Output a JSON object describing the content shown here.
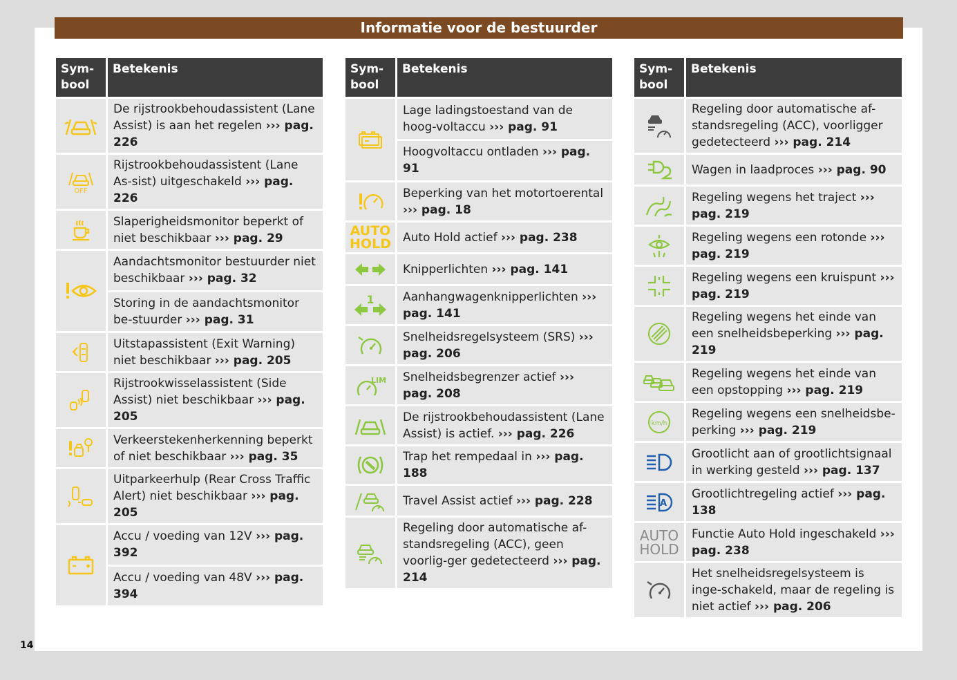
{
  "header": {
    "title": "Informatie voor de bestuurder"
  },
  "page_number": "14",
  "colors": {
    "banner": "#7b4a23",
    "table_header": "#3c3c3c",
    "row_bg": "#e6e6e6",
    "yellow": "#f5c518",
    "green": "#8dc63f",
    "blue": "#1f5fae",
    "grey": "#8a8a8a"
  },
  "columns": {
    "symbol": "Sym-\nbool",
    "meaning": "Betekenis"
  },
  "col1": [
    {
      "pre": "De rijstrookbehoudassistent (Lane Assist) is aan het regelen ",
      "ref": "››› pag. 226"
    },
    {
      "pre": "Rijstrookbehoudassistent (Lane As-sist) uitgeschakeld ",
      "ref": "››› pag. 226"
    },
    {
      "pre": "Slaperigheidsmonitor beperkt of niet beschikbaar ",
      "ref": "››› pag. 29"
    },
    {
      "pre": "Aandachtsmonitor bestuurder niet beschikbaar ",
      "ref": "››› pag. 32"
    },
    {
      "pre": "Storing in de aandachtsmonitor be-stuurder ",
      "ref": "››› pag. 31"
    },
    {
      "pre": "Uitstapassistent (Exit Warning) niet beschikbaar ",
      "ref": "››› pag. 205"
    },
    {
      "pre": "Rijstrookwisselassistent (Side Assist) niet beschikbaar ",
      "ref": "››› pag. 205"
    },
    {
      "pre": "Verkeerstekenherkenning beperkt of niet beschikbaar ",
      "ref": "››› pag. 35"
    },
    {
      "pre": "Uitparkeerhulp (Rear Cross Traffic Alert) niet beschikbaar ",
      "ref": "››› pag. 205"
    },
    {
      "pre": "Accu / voeding van 12V ",
      "ref": "››› pag. 392"
    },
    {
      "pre": "Accu / voeding van 48V ",
      "ref": "››› pag. 394"
    }
  ],
  "col2": [
    {
      "pre": "Lage ladingstoestand van de hoog-voltaccu ",
      "ref": "››› pag. 91"
    },
    {
      "pre": "Hoogvoltaccu ontladen ",
      "ref": "››› pag. 91"
    },
    {
      "pre": "Beperking van het motortoerental ",
      "ref": "››› pag. 18"
    },
    {
      "pre": "Auto Hold actief ",
      "ref": "››› pag. 238"
    },
    {
      "pre": "Knipperlichten ",
      "ref": "››› pag. 141"
    },
    {
      "pre": "Aanhangwagenknipperlichten ",
      "ref": "››› pag. 141"
    },
    {
      "pre": "Snelheidsregelsysteem (SRS) ",
      "ref": "››› pag. 206"
    },
    {
      "pre": "Snelheidsbegrenzer actief ",
      "ref": "››› pag. 208"
    },
    {
      "pre": "De rijstrookbehoudassistent (Lane Assist) is actief. ",
      "ref": "››› pag. 226"
    },
    {
      "pre": "Trap het rempedaal in ",
      "ref": "››› pag. 188"
    },
    {
      "pre": "Travel Assist actief ",
      "ref": "››› pag. 228"
    },
    {
      "pre": "Regeling door automatische af-standsregeling (ACC), geen voorlig-ger gedetecteerd ",
      "ref": "››› pag. 214"
    }
  ],
  "col3": [
    {
      "pre": "Regeling door automatische af-standsregeling (ACC), voorligger gedetecteerd ",
      "ref": "››› pag. 214"
    },
    {
      "pre": "Wagen in laadproces ",
      "ref": "››› pag. 90"
    },
    {
      "pre": "Regeling wegens het traject ",
      "ref": "››› pag. 219"
    },
    {
      "pre": "Regeling wegens een rotonde ",
      "ref": "››› pag. 219"
    },
    {
      "pre": "Regeling wegens een kruispunt ",
      "ref": "››› pag. 219"
    },
    {
      "pre": "Regeling wegens het einde van een snelheidsbeperking ",
      "ref": "››› pag. 219"
    },
    {
      "pre": "Regeling wegens het einde van een opstopping ",
      "ref": "››› pag. 219"
    },
    {
      "pre": "Regeling wegens een snelheidsbe-perking ",
      "ref": "››› pag. 219"
    },
    {
      "pre": "Grootlicht aan of grootlichtsignaal in werking gesteld ",
      "ref": "››› pag. 137"
    },
    {
      "pre": "Grootlichtregeling actief ",
      "ref": "››› pag. 138"
    },
    {
      "pre": "Functie Auto Hold ingeschakeld ",
      "ref": "››› pag. 238"
    },
    {
      "pre": "Het snelheidsregelsysteem is inge-schakeld, maar de regeling is niet actief ",
      "ref": "››› pag. 206"
    }
  ],
  "icons": {
    "col1": [
      "lane-assist-regulating-icon",
      "lane-assist-off-icon",
      "coffee-cup-icon",
      "driver-attention-eye-icon",
      "exit-warning-icon",
      "side-assist-icon",
      "traffic-sign-recognition-icon",
      "rear-cross-traffic-icon",
      "battery-icon"
    ],
    "col2": [
      "hv-battery-low-icon",
      "engine-speed-limit-icon",
      "auto-hold-text-icon",
      "turn-signal-arrows-icon",
      "trailer-turn-signal-icon",
      "cruise-control-icon",
      "speed-limiter-icon",
      "lane-assist-active-icon",
      "brake-pedal-icon",
      "travel-assist-icon",
      "acc-no-vehicle-icon"
    ],
    "col3": [
      "acc-vehicle-detected-icon",
      "charging-plug-icon",
      "curvy-road-icon",
      "roundabout-icon",
      "intersection-icon",
      "end-speed-limit-icon",
      "end-traffic-jam-icon",
      "speed-limit-kmh-icon",
      "high-beam-icon",
      "high-beam-assist-icon",
      "auto-hold-grey-text-icon",
      "cruise-control-inactive-icon"
    ]
  },
  "icon_text": {
    "off": "OFF",
    "auto": "AUTO",
    "hold": "HOLD",
    "lim": "LIM",
    "kmh": "km/h",
    "a": "A",
    "one": "1"
  }
}
